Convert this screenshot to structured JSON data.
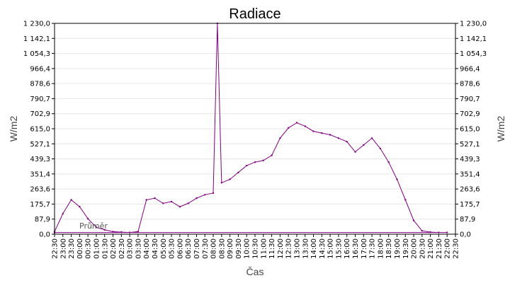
{
  "chart_data": {
    "type": "line",
    "title": "Radiace",
    "xlabel": "Čas",
    "ylabel": "W/m2",
    "ylabel_right": "W/m2",
    "ylim": [
      0,
      1230
    ],
    "y_ticks": [
      "0,0",
      "87,9",
      "175,7",
      "263,6",
      "351,4",
      "439,3",
      "527,1",
      "615,0",
      "702,9",
      "790,7",
      "878,6",
      "966,4",
      "1 054,3",
      "1 142,1",
      "1 230,0"
    ],
    "x_ticks": [
      "22:30",
      "23:00",
      "23:30",
      "00:00",
      "00:30",
      "01:00",
      "01:30",
      "02:00",
      "02:30",
      "03:00",
      "03:30",
      "04:00",
      "04:30",
      "05:00",
      "05:30",
      "06:00",
      "06:30",
      "07:00",
      "07:30",
      "08:00",
      "08:30",
      "09:00",
      "09:30",
      "10:00",
      "10:30",
      "11:00",
      "11:30",
      "12:00",
      "12:30",
      "13:00",
      "13:30",
      "14:00",
      "14:30",
      "15:00",
      "15:30",
      "16:00",
      "16:30",
      "17:00",
      "17:30",
      "18:00",
      "18:30",
      "19:00",
      "19:30",
      "20:00",
      "20:30",
      "21:00",
      "21:30",
      "22:00",
      "22:30"
    ],
    "legend_text": "Průměr",
    "grid": true,
    "series": [
      {
        "color": "#800080",
        "x": [
          "22:30",
          "23:00",
          "23:30",
          "00:00",
          "00:30",
          "01:00",
          "01:30",
          "02:00",
          "02:30",
          "03:00",
          "03:30",
          "04:00",
          "04:30",
          "05:00",
          "05:30",
          "06:00",
          "06:30",
          "07:00",
          "07:30",
          "08:00",
          "08:15",
          "08:30",
          "09:00",
          "09:30",
          "10:00",
          "10:30",
          "11:00",
          "11:30",
          "12:00",
          "12:30",
          "13:00",
          "13:30",
          "14:00",
          "14:30",
          "15:00",
          "15:30",
          "16:00",
          "16:30",
          "17:00",
          "17:30",
          "18:00",
          "18:30",
          "19:00",
          "19:30",
          "20:00",
          "20:30",
          "21:00",
          "21:30",
          "22:00",
          "22:30"
        ],
        "values": [
          15,
          120,
          200,
          160,
          90,
          40,
          25,
          15,
          12,
          10,
          15,
          200,
          210,
          180,
          190,
          160,
          180,
          210,
          230,
          240,
          1230,
          300,
          320,
          360,
          400,
          420,
          430,
          460,
          560,
          620,
          650,
          630,
          600,
          590,
          580,
          560,
          540,
          480,
          520,
          560,
          500,
          420,
          320,
          200,
          80,
          20,
          12,
          10,
          10,
          10
        ]
      }
    ]
  }
}
